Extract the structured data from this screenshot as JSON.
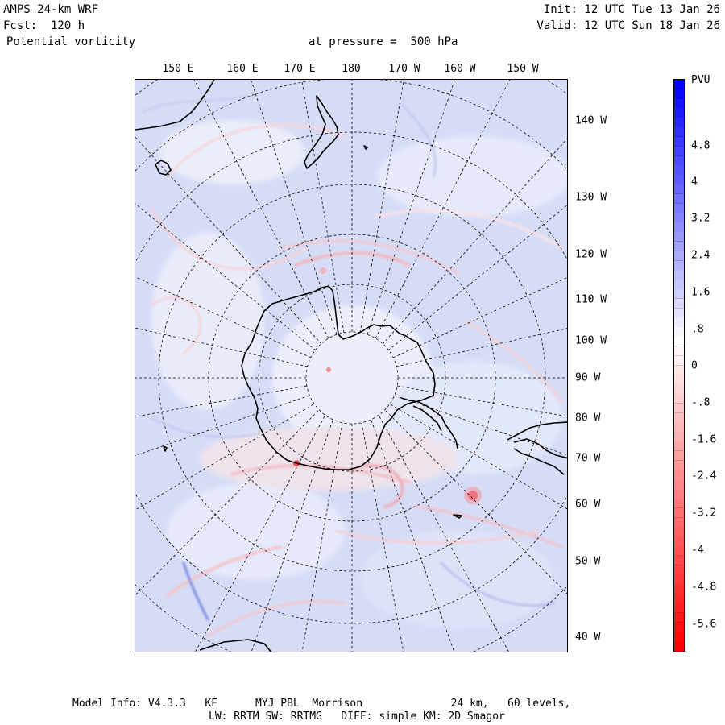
{
  "header": {
    "model": "AMPS 24-km WRF",
    "forecast": "Fcst:  120 h",
    "field": "Potential vorticity",
    "level": "at pressure =  500 hPa",
    "init": "Init: 12 UTC Tue 13 Jan 26",
    "valid": "Valid: 12 UTC Sun 18 Jan 26"
  },
  "map": {
    "projection": "polar stereographic",
    "lon_labels": [
      "150 E",
      "160 E",
      "170 E",
      "180",
      "170 W",
      "160 W",
      "150 W"
    ],
    "lat_labels": [
      "140 W",
      "130 W",
      "120 W",
      "110 W",
      "100 W",
      "90 W",
      "80 W",
      "70 W",
      "60 W",
      "50 W",
      "40 W"
    ],
    "background_color": "#d6dcf6",
    "coast_color": "#000000"
  },
  "colorbar": {
    "unit": "PVU",
    "labels": [
      "4.8",
      "4",
      "3.2",
      "2.4",
      "1.6",
      ".8",
      "0",
      "-.8",
      "-1.6",
      "-2.4",
      "-3.2",
      "-4",
      "-4.8",
      "-5.6"
    ],
    "max_color": "#0000ff",
    "min_color": "#ff0000",
    "neutral_color": "#ffffff"
  },
  "footer": {
    "line1": "Model Info: V4.3.3   KF      MYJ PBL  Morrison              24 km,   60 levels,",
    "line2": "LW: RRTM SW: RRTMG   DIFF: simple KM: 2D Smagor"
  }
}
